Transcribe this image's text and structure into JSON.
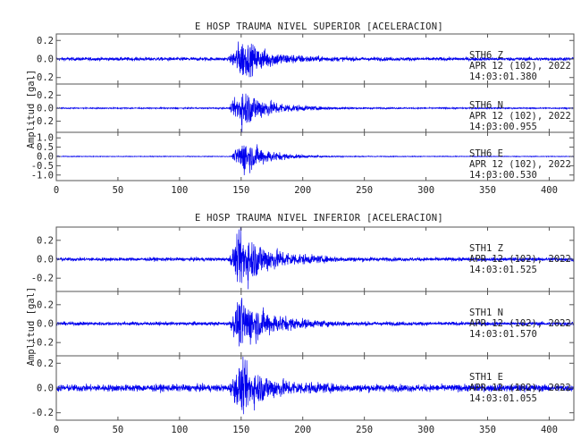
{
  "colors": {
    "trace": "#0000ee",
    "axis": "#555555",
    "text": "#222222",
    "background": "#ffffff"
  },
  "chart_data": [
    {
      "type": "line",
      "title": "E HOSP TRAUMA NIVEL SUPERIOR [ACELERACION]",
      "ylabel": "Amplitud [gal]",
      "x_ticks": [
        "0",
        "50",
        "100",
        "150",
        "200",
        "250",
        "300",
        "350",
        "400"
      ],
      "xlim": [
        0,
        420
      ],
      "grid": false,
      "series": [
        {
          "station": "STH6",
          "component": "Z",
          "date": "APR 12 (102), 2022",
          "time": "14:03:01.380",
          "ylim": [
            -0.27,
            0.27
          ],
          "y_ticks": [
            {
              "label": "0.2",
              "value": 0.2
            },
            {
              "label": "0.0",
              "value": 0.0
            },
            {
              "label": "-0.2",
              "value": -0.2
            }
          ],
          "noise_amplitude": 0.02,
          "peak_amplitude": 0.24,
          "onset_s": 140,
          "peak_s": 150,
          "decay_s": 22
        },
        {
          "station": "STH6",
          "component": "N",
          "date": "APR 12 (102), 2022",
          "time": "14:03:00.955",
          "ylim": [
            -0.37,
            0.37
          ],
          "y_ticks": [
            {
              "label": "0.2",
              "value": 0.2
            },
            {
              "label": "0.0",
              "value": 0.0
            },
            {
              "label": "-0.2",
              "value": -0.2
            }
          ],
          "noise_amplitude": 0.01,
          "peak_amplitude": 0.33,
          "onset_s": 140,
          "peak_s": 151,
          "decay_s": 22
        },
        {
          "station": "STH6",
          "component": "E",
          "date": "APR 12 (102), 2022",
          "time": "14:03:00.530",
          "ylim": [
            -1.3,
            1.3
          ],
          "y_ticks": [
            {
              "label": "1.0",
              "value": 1.0
            },
            {
              "label": "0.5",
              "value": 0.5
            },
            {
              "label": "0.0",
              "value": 0.0
            },
            {
              "label": "-0.5",
              "value": -0.5
            },
            {
              "label": "-1.0",
              "value": -1.0
            }
          ],
          "noise_amplitude": 0.02,
          "peak_amplitude": 1.05,
          "onset_s": 142,
          "peak_s": 152,
          "decay_s": 18
        }
      ]
    },
    {
      "type": "line",
      "title": "E HOSP TRAUMA NIVEL INFERIOR [ACELERACION]",
      "ylabel": "Amplitud [gal]",
      "x_ticks": [
        "0",
        "50",
        "100",
        "150",
        "200",
        "250",
        "300",
        "350",
        "400"
      ],
      "xlim": [
        0,
        420
      ],
      "grid": false,
      "series": [
        {
          "station": "STH1",
          "component": "Z",
          "date": "APR 12 (102), 2022",
          "time": "14:03:01.525",
          "ylim": [
            -0.34,
            0.34
          ],
          "y_ticks": [
            {
              "label": "0.2",
              "value": 0.2
            },
            {
              "label": "0.0",
              "value": 0.0
            },
            {
              "label": "-0.2",
              "value": -0.2
            }
          ],
          "noise_amplitude": 0.02,
          "peak_amplitude": 0.33,
          "onset_s": 140,
          "peak_s": 150,
          "decay_s": 24
        },
        {
          "station": "STH1",
          "component": "N",
          "date": "APR 12 (102), 2022",
          "time": "14:03:01.570",
          "ylim": [
            -0.34,
            0.34
          ],
          "y_ticks": [
            {
              "label": "0.2",
              "value": 0.2
            },
            {
              "label": "0.0",
              "value": 0.0
            },
            {
              "label": "-0.2",
              "value": -0.2
            }
          ],
          "noise_amplitude": 0.02,
          "peak_amplitude": 0.3,
          "onset_s": 140,
          "peak_s": 150,
          "decay_s": 24
        },
        {
          "station": "STH1",
          "component": "E",
          "date": "APR 12 (102), 2022",
          "time": "14:03:01.055",
          "ylim": [
            -0.26,
            0.26
          ],
          "y_ticks": [
            {
              "label": "0.2",
              "value": 0.2
            },
            {
              "label": "0.0",
              "value": 0.0
            },
            {
              "label": "-0.2",
              "value": -0.2
            }
          ],
          "noise_amplitude": 0.03,
          "peak_amplitude": 0.22,
          "onset_s": 140,
          "peak_s": 150,
          "decay_s": 24
        }
      ]
    }
  ]
}
